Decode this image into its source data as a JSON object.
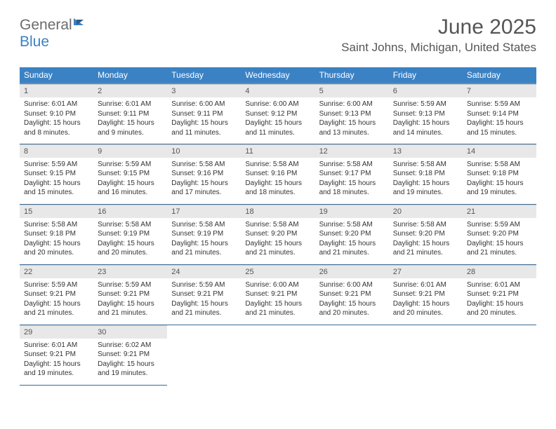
{
  "logo": {
    "line1": "General",
    "line2": "Blue"
  },
  "title": "June 2025",
  "location": "Saint Johns, Michigan, United States",
  "weekdays": [
    "Sunday",
    "Monday",
    "Tuesday",
    "Wednesday",
    "Thursday",
    "Friday",
    "Saturday"
  ],
  "style": {
    "header_bg": "#3b82c4",
    "header_text": "#ffffff",
    "row_divider": "#3b6a94",
    "daynum_bg": "#e8e8e8",
    "daynum_color": "#555555",
    "body_text": "#333333",
    "title_font_size": 30,
    "location_font_size": 17,
    "th_font_size": 12,
    "day_font_size": 10
  },
  "days": [
    {
      "num": "1",
      "sunrise": "6:01 AM",
      "sunset": "9:10 PM",
      "daylight": "15 hours and 8 minutes."
    },
    {
      "num": "2",
      "sunrise": "6:01 AM",
      "sunset": "9:11 PM",
      "daylight": "15 hours and 9 minutes."
    },
    {
      "num": "3",
      "sunrise": "6:00 AM",
      "sunset": "9:11 PM",
      "daylight": "15 hours and 11 minutes."
    },
    {
      "num": "4",
      "sunrise": "6:00 AM",
      "sunset": "9:12 PM",
      "daylight": "15 hours and 11 minutes."
    },
    {
      "num": "5",
      "sunrise": "6:00 AM",
      "sunset": "9:13 PM",
      "daylight": "15 hours and 13 minutes."
    },
    {
      "num": "6",
      "sunrise": "5:59 AM",
      "sunset": "9:13 PM",
      "daylight": "15 hours and 14 minutes."
    },
    {
      "num": "7",
      "sunrise": "5:59 AM",
      "sunset": "9:14 PM",
      "daylight": "15 hours and 15 minutes."
    },
    {
      "num": "8",
      "sunrise": "5:59 AM",
      "sunset": "9:15 PM",
      "daylight": "15 hours and 15 minutes."
    },
    {
      "num": "9",
      "sunrise": "5:59 AM",
      "sunset": "9:15 PM",
      "daylight": "15 hours and 16 minutes."
    },
    {
      "num": "10",
      "sunrise": "5:58 AM",
      "sunset": "9:16 PM",
      "daylight": "15 hours and 17 minutes."
    },
    {
      "num": "11",
      "sunrise": "5:58 AM",
      "sunset": "9:16 PM",
      "daylight": "15 hours and 18 minutes."
    },
    {
      "num": "12",
      "sunrise": "5:58 AM",
      "sunset": "9:17 PM",
      "daylight": "15 hours and 18 minutes."
    },
    {
      "num": "13",
      "sunrise": "5:58 AM",
      "sunset": "9:18 PM",
      "daylight": "15 hours and 19 minutes."
    },
    {
      "num": "14",
      "sunrise": "5:58 AM",
      "sunset": "9:18 PM",
      "daylight": "15 hours and 19 minutes."
    },
    {
      "num": "15",
      "sunrise": "5:58 AM",
      "sunset": "9:18 PM",
      "daylight": "15 hours and 20 minutes."
    },
    {
      "num": "16",
      "sunrise": "5:58 AM",
      "sunset": "9:19 PM",
      "daylight": "15 hours and 20 minutes."
    },
    {
      "num": "17",
      "sunrise": "5:58 AM",
      "sunset": "9:19 PM",
      "daylight": "15 hours and 21 minutes."
    },
    {
      "num": "18",
      "sunrise": "5:58 AM",
      "sunset": "9:20 PM",
      "daylight": "15 hours and 21 minutes."
    },
    {
      "num": "19",
      "sunrise": "5:58 AM",
      "sunset": "9:20 PM",
      "daylight": "15 hours and 21 minutes."
    },
    {
      "num": "20",
      "sunrise": "5:58 AM",
      "sunset": "9:20 PM",
      "daylight": "15 hours and 21 minutes."
    },
    {
      "num": "21",
      "sunrise": "5:59 AM",
      "sunset": "9:20 PM",
      "daylight": "15 hours and 21 minutes."
    },
    {
      "num": "22",
      "sunrise": "5:59 AM",
      "sunset": "9:21 PM",
      "daylight": "15 hours and 21 minutes."
    },
    {
      "num": "23",
      "sunrise": "5:59 AM",
      "sunset": "9:21 PM",
      "daylight": "15 hours and 21 minutes."
    },
    {
      "num": "24",
      "sunrise": "5:59 AM",
      "sunset": "9:21 PM",
      "daylight": "15 hours and 21 minutes."
    },
    {
      "num": "25",
      "sunrise": "6:00 AM",
      "sunset": "9:21 PM",
      "daylight": "15 hours and 21 minutes."
    },
    {
      "num": "26",
      "sunrise": "6:00 AM",
      "sunset": "9:21 PM",
      "daylight": "15 hours and 20 minutes."
    },
    {
      "num": "27",
      "sunrise": "6:01 AM",
      "sunset": "9:21 PM",
      "daylight": "15 hours and 20 minutes."
    },
    {
      "num": "28",
      "sunrise": "6:01 AM",
      "sunset": "9:21 PM",
      "daylight": "15 hours and 20 minutes."
    },
    {
      "num": "29",
      "sunrise": "6:01 AM",
      "sunset": "9:21 PM",
      "daylight": "15 hours and 19 minutes."
    },
    {
      "num": "30",
      "sunrise": "6:02 AM",
      "sunset": "9:21 PM",
      "daylight": "15 hours and 19 minutes."
    }
  ],
  "labels": {
    "sunrise": "Sunrise:",
    "sunset": "Sunset:",
    "daylight": "Daylight:"
  }
}
